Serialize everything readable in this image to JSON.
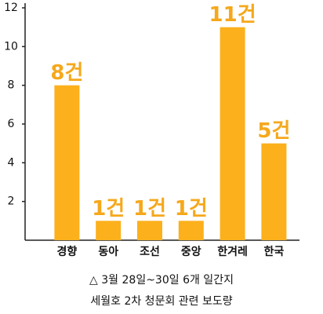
{
  "chart_data": {
    "type": "bar",
    "categories": [
      "경향",
      "동아",
      "조선",
      "중앙",
      "한겨레",
      "한국"
    ],
    "values": [
      8,
      1,
      1,
      1,
      11,
      5
    ],
    "value_labels": [
      "8건",
      "1건",
      "1건",
      "1건",
      "11건",
      "5건"
    ],
    "color": "#fbb01c",
    "ylim": [
      0,
      12
    ],
    "yticks": [
      2,
      4,
      6,
      8,
      10,
      12
    ],
    "grid": false,
    "caption": [
      "△ 3월 28일~30일 6개 일간지",
      "세월호 2차 청문회 관련 보도량"
    ]
  }
}
